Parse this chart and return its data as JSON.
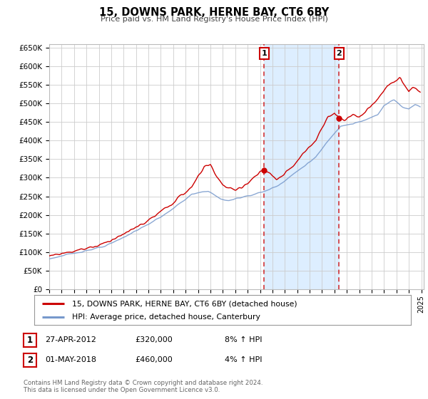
{
  "title": "15, DOWNS PARK, HERNE BAY, CT6 6BY",
  "subtitle": "Price paid vs. HM Land Registry's House Price Index (HPI)",
  "legend_line1": "15, DOWNS PARK, HERNE BAY, CT6 6BY (detached house)",
  "legend_line2": "HPI: Average price, detached house, Canterbury",
  "annotation1_label": "1",
  "annotation1_date": "27-APR-2012",
  "annotation1_price": "£320,000",
  "annotation1_hpi": "8% ↑ HPI",
  "annotation2_label": "2",
  "annotation2_date": "01-MAY-2018",
  "annotation2_price": "£460,000",
  "annotation2_hpi": "4% ↑ HPI",
  "footer_line1": "Contains HM Land Registry data © Crown copyright and database right 2024.",
  "footer_line2": "This data is licensed under the Open Government Licence v3.0.",
  "red_color": "#cc0000",
  "blue_color": "#7799cc",
  "shaded_color": "#ddeeff",
  "grid_color": "#cccccc",
  "background_color": "#ffffff",
  "ylim": [
    0,
    660000
  ],
  "yticks": [
    0,
    50000,
    100000,
    150000,
    200000,
    250000,
    300000,
    350000,
    400000,
    450000,
    500000,
    550000,
    600000,
    650000
  ],
  "marker1_x_year": 2012.33,
  "marker1_y": 320000,
  "marker2_x_year": 2018.37,
  "marker2_y": 460000,
  "vline1_x": 2012.33,
  "vline2_x": 2018.37,
  "xmin": 1995,
  "xmax": 2025.2
}
